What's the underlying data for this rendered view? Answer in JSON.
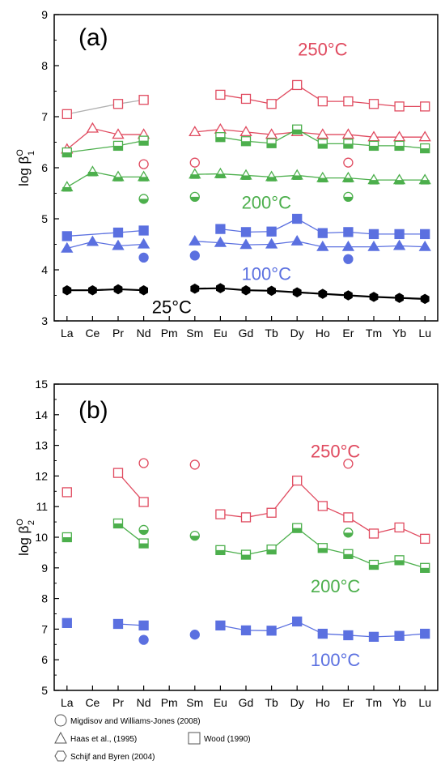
{
  "colors": {
    "red": "#e04a5f",
    "green": "#4caf4c",
    "blue": "#5b70e0",
    "black": "#000000"
  },
  "chart_data": [
    {
      "type": "scatter",
      "panel_label": "(a)",
      "ylabel": "log β",
      "ylabel_sup": "O",
      "ylabel_sub": "1",
      "categories": [
        "La",
        "Ce",
        "Pr",
        "Nd",
        "Pm",
        "Sm",
        "Eu",
        "Gd",
        "Tb",
        "Dy",
        "Ho",
        "Er",
        "Tm",
        "Yb",
        "Lu"
      ],
      "ylim": [
        3,
        9
      ],
      "yticks": [
        3,
        4,
        5,
        6,
        7,
        8,
        9
      ],
      "temp_labels": [
        {
          "text": "250°C",
          "color": "red",
          "cat": 10.0,
          "y": 8.2
        },
        {
          "text": "200°C",
          "color": "green",
          "cat": 7.8,
          "y": 5.2
        },
        {
          "text": "100°C",
          "color": "blue",
          "cat": 7.8,
          "y": 3.8
        },
        {
          "text": "25°C",
          "color": "black",
          "cat": 4.1,
          "y": 3.15
        }
      ],
      "series": [
        {
          "marker": "square-open",
          "color": "red",
          "connect": "gray",
          "values": [
            7.05,
            null,
            7.25,
            7.33,
            null,
            null,
            null,
            null,
            null,
            null,
            null,
            null,
            null,
            null,
            null
          ]
        },
        {
          "marker": "square-open",
          "color": "red",
          "connect": "color",
          "values": [
            null,
            null,
            null,
            null,
            null,
            null,
            7.43,
            7.35,
            7.25,
            7.62,
            7.3,
            7.3,
            7.25,
            7.2,
            7.2
          ]
        },
        {
          "marker": "triangle-open",
          "color": "red",
          "connect": "color",
          "values": [
            6.36,
            6.77,
            6.65,
            6.65,
            null,
            6.7,
            6.75,
            6.7,
            6.65,
            6.7,
            6.65,
            6.65,
            6.6,
            6.6,
            6.6
          ]
        },
        {
          "marker": "circle-open",
          "color": "red",
          "connect": "none",
          "values": [
            null,
            null,
            null,
            6.07,
            null,
            6.1,
            null,
            null,
            null,
            null,
            null,
            6.1,
            null,
            null,
            null
          ]
        },
        {
          "marker": "square-half",
          "color": "green",
          "connect": "color",
          "values": [
            6.3,
            null,
            6.43,
            6.53,
            null,
            null,
            6.6,
            6.52,
            6.48,
            6.75,
            6.47,
            6.47,
            6.43,
            6.43,
            6.38
          ]
        },
        {
          "marker": "triangle-half",
          "color": "green",
          "connect": "color",
          "values": [
            5.62,
            5.92,
            5.82,
            5.82,
            null,
            5.87,
            5.88,
            5.85,
            5.82,
            5.85,
            5.8,
            5.8,
            5.76,
            5.76,
            5.76
          ]
        },
        {
          "marker": "circle-half",
          "color": "green",
          "connect": "none",
          "values": [
            null,
            null,
            null,
            5.39,
            null,
            5.43,
            null,
            null,
            null,
            null,
            null,
            5.43,
            null,
            null,
            null
          ]
        },
        {
          "marker": "square-filled",
          "color": "blue",
          "connect": "color",
          "values": [
            4.66,
            null,
            4.73,
            4.77,
            null,
            null,
            4.8,
            4.74,
            4.75,
            5.0,
            4.72,
            4.74,
            4.7,
            4.7,
            4.7
          ]
        },
        {
          "marker": "triangle-filled",
          "color": "blue",
          "connect": "color",
          "values": [
            4.42,
            4.55,
            4.47,
            4.5,
            null,
            4.56,
            4.53,
            4.49,
            4.5,
            4.56,
            4.45,
            4.45,
            4.45,
            4.47,
            4.45
          ]
        },
        {
          "marker": "circle-filled",
          "color": "blue",
          "connect": "none",
          "values": [
            null,
            null,
            null,
            4.24,
            null,
            4.28,
            null,
            null,
            null,
            null,
            null,
            4.21,
            null,
            null,
            null
          ]
        },
        {
          "marker": "hexagon-filled",
          "color": "black",
          "connect": "color",
          "values": [
            3.6,
            3.6,
            3.62,
            3.6,
            null,
            3.63,
            3.64,
            3.6,
            3.59,
            3.56,
            3.53,
            3.5,
            3.47,
            3.45,
            3.43
          ]
        }
      ]
    },
    {
      "type": "scatter",
      "panel_label": "(b)",
      "ylabel": "log β",
      "ylabel_sup": "O",
      "ylabel_sub": "2",
      "categories": [
        "La",
        "Ce",
        "Pr",
        "Nd",
        "Pm",
        "Sm",
        "Eu",
        "Gd",
        "Tb",
        "Dy",
        "Ho",
        "Er",
        "Tm",
        "Yb",
        "Lu"
      ],
      "ylim": [
        5,
        15
      ],
      "yticks": [
        5,
        6,
        7,
        8,
        9,
        10,
        11,
        12,
        13,
        14,
        15
      ],
      "temp_labels": [
        {
          "text": "250°C",
          "color": "red",
          "cat": 10.5,
          "y": 12.6
        },
        {
          "text": "200°C",
          "color": "green",
          "cat": 10.5,
          "y": 8.2
        },
        {
          "text": "100°C",
          "color": "blue",
          "cat": 10.5,
          "y": 5.8
        }
      ],
      "series": [
        {
          "marker": "square-open",
          "color": "red",
          "connect": "none",
          "values": [
            11.47,
            null,
            null,
            null,
            null,
            null,
            null,
            null,
            null,
            null,
            null,
            null,
            null,
            null,
            null
          ]
        },
        {
          "marker": "square-open",
          "color": "red",
          "connect": "color",
          "values": [
            null,
            null,
            12.1,
            11.15,
            null,
            null,
            null,
            null,
            null,
            null,
            null,
            null,
            null,
            null,
            null
          ]
        },
        {
          "marker": "square-open",
          "color": "red",
          "connect": "color",
          "values": [
            null,
            null,
            null,
            null,
            null,
            null,
            10.75,
            10.65,
            10.8,
            11.85,
            11.02,
            10.65,
            10.12,
            10.32,
            9.95
          ]
        },
        {
          "marker": "circle-open",
          "color": "red",
          "connect": "none",
          "values": [
            null,
            null,
            null,
            12.42,
            null,
            12.37,
            null,
            null,
            null,
            null,
            null,
            12.4,
            null,
            null,
            null
          ]
        },
        {
          "marker": "square-half",
          "color": "green",
          "connect": "none",
          "values": [
            10.0,
            null,
            null,
            null,
            null,
            null,
            null,
            null,
            null,
            null,
            null,
            null,
            null,
            null,
            null
          ]
        },
        {
          "marker": "square-half",
          "color": "green",
          "connect": "color",
          "values": [
            null,
            null,
            10.45,
            9.8,
            null,
            null,
            null,
            null,
            null,
            null,
            null,
            null,
            null,
            null,
            null
          ]
        },
        {
          "marker": "square-half",
          "color": "green",
          "connect": "color",
          "values": [
            null,
            null,
            null,
            null,
            null,
            null,
            9.58,
            9.43,
            9.6,
            10.3,
            9.65,
            9.45,
            9.1,
            9.25,
            9.0
          ]
        },
        {
          "marker": "circle-half",
          "color": "green",
          "connect": "none",
          "values": [
            null,
            null,
            null,
            10.24,
            null,
            10.05,
            null,
            null,
            null,
            null,
            null,
            10.15,
            null,
            null,
            null
          ]
        },
        {
          "marker": "square-filled",
          "color": "blue",
          "connect": "none",
          "values": [
            7.2,
            null,
            null,
            null,
            null,
            null,
            null,
            null,
            null,
            null,
            null,
            null,
            null,
            null,
            null
          ]
        },
        {
          "marker": "square-filled",
          "color": "blue",
          "connect": "color",
          "values": [
            null,
            null,
            7.17,
            7.12,
            null,
            null,
            null,
            null,
            null,
            null,
            null,
            null,
            null,
            null,
            null
          ]
        },
        {
          "marker": "square-filled",
          "color": "blue",
          "connect": "color",
          "values": [
            null,
            null,
            null,
            null,
            null,
            null,
            7.12,
            6.96,
            6.95,
            7.25,
            6.85,
            6.8,
            6.75,
            6.78,
            6.85
          ]
        },
        {
          "marker": "circle-filled",
          "color": "blue",
          "connect": "none",
          "values": [
            null,
            null,
            null,
            6.65,
            null,
            6.82,
            null,
            null,
            null,
            null,
            null,
            null,
            null,
            null,
            null
          ]
        }
      ]
    }
  ],
  "legend": [
    {
      "marker": "circle",
      "label": "Migdisov and Williams-Jones (2008)"
    },
    {
      "marker": "triangle",
      "label": "Haas et al., (1995)"
    },
    {
      "marker": "square",
      "label": "Wood (1990)"
    },
    {
      "marker": "hexagon",
      "label": "Schijf and Byren (2004)"
    }
  ]
}
